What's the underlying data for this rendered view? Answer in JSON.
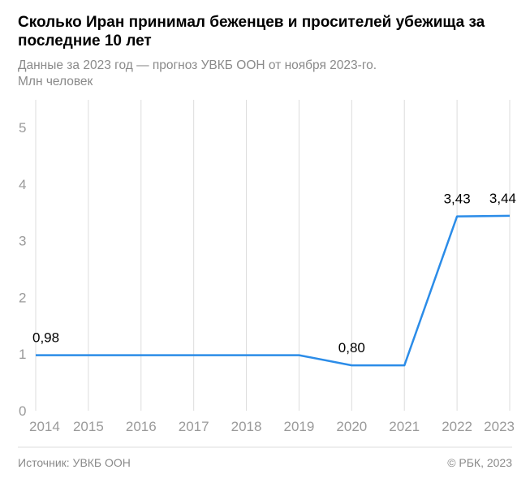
{
  "title": "Сколько Иран принимал беженцев и просителей убежища за последние 10 лет",
  "subtitle_line1": "Данные за 2023 год — прогноз УВКБ ООН от ноября 2023-го.",
  "subtitle_line2": "Млн человек",
  "footer": {
    "source": "Источник: УВКБ ООН",
    "copyright": "© РБК, 2023"
  },
  "colors": {
    "line": "#2b8ce8",
    "grid": "#dcdcdc",
    "tick": "#9a9a9a",
    "label": "#000000"
  },
  "chart_data": {
    "type": "line",
    "x": [
      "2014",
      "2015",
      "2016",
      "2017",
      "2018",
      "2019",
      "2020",
      "2021",
      "2022",
      "2023"
    ],
    "series": [
      {
        "values": [
          0.98,
          0.98,
          0.98,
          0.98,
          0.98,
          0.98,
          0.8,
          0.8,
          3.43,
          3.44
        ]
      }
    ],
    "data_labels": [
      {
        "index": 0,
        "text": "0,98"
      },
      {
        "index": 6,
        "text": "0,80"
      },
      {
        "index": 8,
        "text": "3,43"
      },
      {
        "index": 9,
        "text": "3,44"
      }
    ],
    "ylim": [
      0,
      5
    ],
    "yticks": [
      "0",
      "1",
      "2",
      "3",
      "4",
      "5"
    ],
    "grid": true,
    "legend": "none"
  }
}
